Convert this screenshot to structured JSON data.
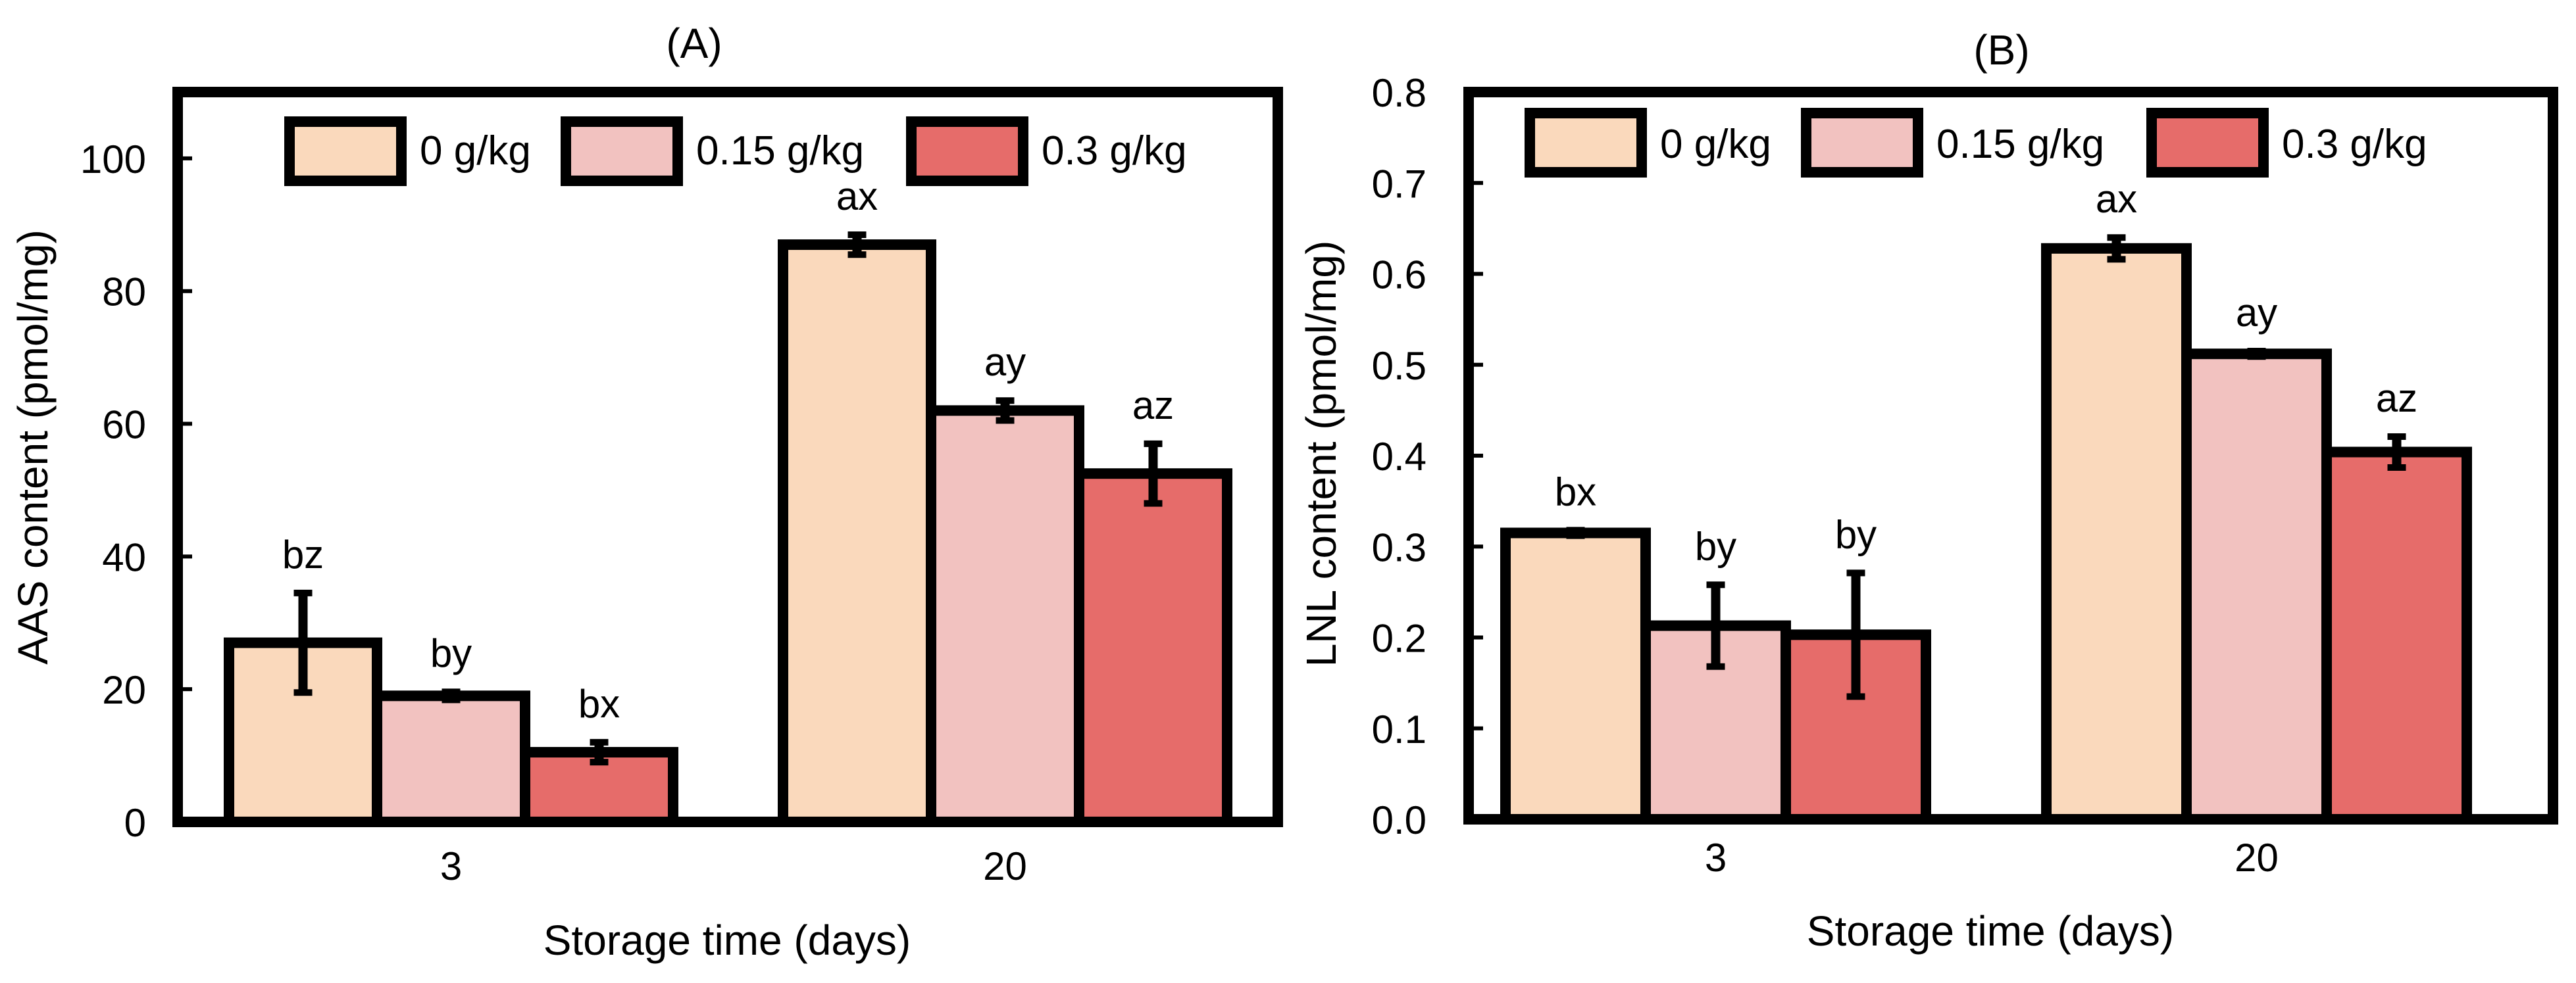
{
  "chart_data": [
    {
      "type": "bar",
      "panel_title": "(A)",
      "xlabel": "Storage time (days)",
      "ylabel": "AAS content (pmol/mg)",
      "categories": [
        "3",
        "20"
      ],
      "ylim": [
        0,
        110
      ],
      "yticks": [
        0,
        20,
        40,
        60,
        80,
        100
      ],
      "ytick_labels": [
        "0",
        "20",
        "40",
        "60",
        "80",
        "100"
      ],
      "legend_position": "top",
      "series": [
        {
          "name": "0 g/kg",
          "values": [
            27,
            87
          ],
          "errors": [
            7.5,
            1.5
          ],
          "labels": [
            "bz",
            "ax"
          ]
        },
        {
          "name": "0.15 g/kg",
          "values": [
            19,
            62
          ],
          "errors": [
            0.6,
            1.5
          ],
          "labels": [
            "by",
            "ay"
          ]
        },
        {
          "name": "0.3 g/kg",
          "values": [
            10.5,
            52.5
          ],
          "errors": [
            1.5,
            4.5
          ],
          "labels": [
            "bx",
            "az"
          ]
        }
      ]
    },
    {
      "type": "bar",
      "panel_title": "(B)",
      "xlabel": "Storage time (days)",
      "ylabel": "LNL content (pmol/mg)",
      "categories": [
        "3",
        "20"
      ],
      "ylim": [
        0,
        0.8
      ],
      "yticks": [
        0,
        0.1,
        0.2,
        0.3,
        0.4,
        0.5,
        0.6,
        0.7,
        0.8
      ],
      "ytick_labels": [
        "0.0",
        "0.1",
        "0.2",
        "0.3",
        "0.4",
        "0.5",
        "0.6",
        "0.7",
        "0.8"
      ],
      "legend_position": "top",
      "series": [
        {
          "name": "0 g/kg",
          "values": [
            0.315,
            0.628
          ],
          "errors": [
            0.003,
            0.012
          ],
          "labels": [
            "bx",
            "ax"
          ]
        },
        {
          "name": "0.15 g/kg",
          "values": [
            0.213,
            0.512
          ],
          "errors": [
            0.045,
            0.003
          ],
          "labels": [
            "by",
            "ay"
          ]
        },
        {
          "name": "0.3 g/kg",
          "values": [
            0.203,
            0.404
          ],
          "errors": [
            0.068,
            0.017
          ],
          "labels": [
            "by",
            "az"
          ]
        }
      ]
    }
  ],
  "colors": {
    "series": [
      "#fad9bc",
      "#f2c2c0",
      "#e66c6a"
    ],
    "outline": "#000000"
  }
}
